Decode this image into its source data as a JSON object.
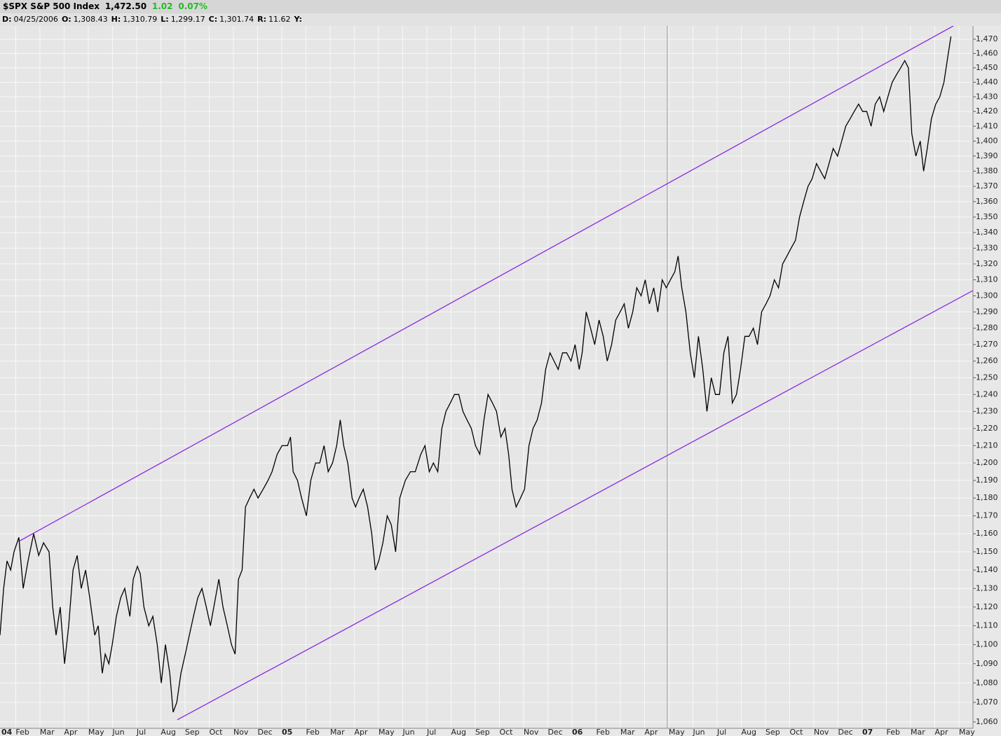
{
  "header": {
    "title": "$SPX S&P 500 Index",
    "last": "1,472.50",
    "change": "1.02",
    "change_pct": "0.07%",
    "fields": [
      {
        "label": "D:",
        "value": "04/25/2006"
      },
      {
        "label": "O:",
        "value": "1,308.43"
      },
      {
        "label": "H:",
        "value": "1,310.79"
      },
      {
        "label": "L:",
        "value": "1,299.17"
      },
      {
        "label": "C:",
        "value": "1,301.74"
      },
      {
        "label": "R:",
        "value": "11.62"
      },
      {
        "label": "Y:"
      }
    ]
  },
  "chart_data": {
    "type": "line",
    "log_scale": true,
    "grid": true,
    "xlim": [
      0.35,
      40.58
    ],
    "ylim": [
      1056.8,
      1479.4
    ],
    "xticks": [
      {
        "value": 0,
        "label": "04"
      },
      {
        "value": 1,
        "label": "Feb"
      },
      {
        "value": 2,
        "label": "Mar"
      },
      {
        "value": 3,
        "label": "Apr"
      },
      {
        "value": 4,
        "label": "May"
      },
      {
        "value": 5,
        "label": "Jun"
      },
      {
        "value": 6,
        "label": "Jul"
      },
      {
        "value": 7,
        "label": "Aug"
      },
      {
        "value": 8,
        "label": "Sep"
      },
      {
        "value": 9,
        "label": "Oct"
      },
      {
        "value": 10,
        "label": "Nov"
      },
      {
        "value": 11,
        "label": "Dec"
      },
      {
        "value": 12,
        "label": "05"
      },
      {
        "value": 13,
        "label": "Feb"
      },
      {
        "value": 14,
        "label": "Mar"
      },
      {
        "value": 15,
        "label": "Apr"
      },
      {
        "value": 16,
        "label": "May"
      },
      {
        "value": 17,
        "label": "Jun"
      },
      {
        "value": 18,
        "label": "Jul"
      },
      {
        "value": 19,
        "label": "Aug"
      },
      {
        "value": 20,
        "label": "Sep"
      },
      {
        "value": 21,
        "label": "Oct"
      },
      {
        "value": 22,
        "label": "Nov"
      },
      {
        "value": 23,
        "label": "Dec"
      },
      {
        "value": 24,
        "label": "06"
      },
      {
        "value": 25,
        "label": "Feb"
      },
      {
        "value": 26,
        "label": "Mar"
      },
      {
        "value": 27,
        "label": "Apr"
      },
      {
        "value": 28,
        "label": "May"
      },
      {
        "value": 29,
        "label": "Jun"
      },
      {
        "value": 30,
        "label": "Jul"
      },
      {
        "value": 31,
        "label": "Aug"
      },
      {
        "value": 32,
        "label": "Sep"
      },
      {
        "value": 33,
        "label": "Oct"
      },
      {
        "value": 34,
        "label": "Nov"
      },
      {
        "value": 35,
        "label": "Dec"
      },
      {
        "value": 36,
        "label": "07"
      },
      {
        "value": 37,
        "label": "Feb"
      },
      {
        "value": 38,
        "label": "Mar"
      },
      {
        "value": 39,
        "label": "Apr"
      },
      {
        "value": 40,
        "label": "May"
      }
    ],
    "yticks": [
      {
        "value": 1060,
        "label": "1,060"
      },
      {
        "value": 1070,
        "label": "1,070"
      },
      {
        "value": 1080,
        "label": "1,080"
      },
      {
        "value": 1090,
        "label": "1,090"
      },
      {
        "value": 1100,
        "label": "1,100"
      },
      {
        "value": 1110,
        "label": "1,110"
      },
      {
        "value": 1120,
        "label": "1,120"
      },
      {
        "value": 1130,
        "label": "1,130"
      },
      {
        "value": 1140,
        "label": "1,140"
      },
      {
        "value": 1150,
        "label": "1,150"
      },
      {
        "value": 1160,
        "label": "1,160"
      },
      {
        "value": 1170,
        "label": "1,170"
      },
      {
        "value": 1180,
        "label": "1,180"
      },
      {
        "value": 1190,
        "label": "1,190"
      },
      {
        "value": 1200,
        "label": "1,200"
      },
      {
        "value": 1210,
        "label": "1,210"
      },
      {
        "value": 1220,
        "label": "1,220"
      },
      {
        "value": 1230,
        "label": "1,230"
      },
      {
        "value": 1240,
        "label": "1,240"
      },
      {
        "value": 1250,
        "label": "1,250"
      },
      {
        "value": 1260,
        "label": "1,260"
      },
      {
        "value": 1270,
        "label": "1,270"
      },
      {
        "value": 1280,
        "label": "1,280"
      },
      {
        "value": 1290,
        "label": "1,290"
      },
      {
        "value": 1300,
        "label": "1,300"
      },
      {
        "value": 1310,
        "label": "1,310"
      },
      {
        "value": 1320,
        "label": "1,320"
      },
      {
        "value": 1330,
        "label": "1,330"
      },
      {
        "value": 1340,
        "label": "1,340"
      },
      {
        "value": 1350,
        "label": "1,350"
      },
      {
        "value": 1360,
        "label": "1,360"
      },
      {
        "value": 1370,
        "label": "1,370"
      },
      {
        "value": 1380,
        "label": "1,380"
      },
      {
        "value": 1390,
        "label": "1,390"
      },
      {
        "value": 1400,
        "label": "1,400"
      },
      {
        "value": 1410,
        "label": "1,410"
      },
      {
        "value": 1420,
        "label": "1,420"
      },
      {
        "value": 1430,
        "label": "1,430"
      },
      {
        "value": 1440,
        "label": "1,440"
      },
      {
        "value": 1450,
        "label": "1,450"
      },
      {
        "value": 1460,
        "label": "1,460"
      },
      {
        "value": 1470,
        "label": "1,470"
      }
    ],
    "x": [
      0.35,
      0.5,
      0.64,
      0.79,
      0.93,
      1.13,
      1.31,
      1.51,
      1.74,
      1.95,
      2.15,
      2.38,
      2.53,
      2.67,
      2.84,
      3.02,
      3.19,
      3.37,
      3.54,
      3.71,
      3.89,
      4.06,
      4.27,
      4.41,
      4.58,
      4.7,
      4.85,
      4.99,
      5.16,
      5.34,
      5.51,
      5.72,
      5.86,
      6.03,
      6.15,
      6.3,
      6.5,
      6.67,
      6.85,
      7.02,
      7.19,
      7.37,
      7.51,
      7.66,
      7.83,
      8.01,
      8.18,
      8.35,
      8.53,
      8.7,
      8.88,
      9.05,
      9.22,
      9.4,
      9.57,
      9.75,
      9.92,
      10.07,
      10.21,
      10.36,
      10.5,
      10.67,
      10.85,
      11.02,
      11.23,
      11.43,
      11.6,
      11.81,
      12.01,
      12.24,
      12.36,
      12.47,
      12.65,
      12.82,
      13.02,
      13.2,
      13.4,
      13.57,
      13.75,
      13.92,
      14.1,
      14.27,
      14.42,
      14.56,
      14.73,
      14.91,
      15.05,
      15.2,
      15.37,
      15.55,
      15.72,
      15.87,
      16.01,
      16.18,
      16.36,
      16.53,
      16.71,
      16.88,
      17.11,
      17.32,
      17.52,
      17.75,
      17.92,
      18.1,
      18.27,
      18.45,
      18.62,
      18.79,
      18.97,
      19.14,
      19.32,
      19.49,
      19.66,
      19.84,
      20.01,
      20.19,
      20.36,
      20.53,
      20.71,
      20.88,
      21.06,
      21.23,
      21.38,
      21.52,
      21.69,
      21.87,
      22.04,
      22.22,
      22.39,
      22.56,
      22.74,
      22.91,
      23.09,
      23.26,
      23.43,
      23.61,
      23.78,
      23.96,
      24.13,
      24.3,
      24.42,
      24.59,
      24.77,
      24.94,
      25.12,
      25.29,
      25.46,
      25.64,
      25.81,
      25.99,
      26.16,
      26.33,
      26.51,
      26.68,
      26.86,
      27.03,
      27.2,
      27.38,
      27.55,
      27.73,
      27.9,
      28.07,
      28.25,
      28.39,
      28.54,
      28.71,
      28.89,
      29.06,
      29.23,
      29.41,
      29.58,
      29.76,
      29.93,
      30.1,
      30.28,
      30.45,
      30.63,
      30.8,
      30.97,
      31.15,
      31.32,
      31.5,
      31.67,
      31.84,
      32.02,
      32.19,
      32.37,
      32.54,
      32.71,
      32.89,
      33.06,
      33.24,
      33.41,
      33.58,
      33.76,
      33.93,
      34.11,
      34.28,
      34.45,
      34.63,
      34.8,
      34.98,
      35.15,
      35.32,
      35.5,
      35.67,
      35.85,
      36.02,
      36.19,
      36.37,
      36.54,
      36.72,
      36.89,
      37.06,
      37.24,
      37.41,
      37.59,
      37.76,
      37.91,
      38.05,
      38.22,
      38.4,
      38.54,
      38.69,
      38.86,
      39.04,
      39.21,
      39.38,
      39.56,
      39.67
    ],
    "series": [
      {
        "color": "#000000",
        "values": [
          1105,
          1130,
          1145,
          1140,
          1150,
          1158,
          1130,
          1145,
          1160,
          1148,
          1155,
          1150,
          1120,
          1105,
          1120,
          1090,
          1110,
          1140,
          1148,
          1130,
          1140,
          1125,
          1105,
          1110,
          1085,
          1095,
          1090,
          1100,
          1115,
          1125,
          1130,
          1115,
          1135,
          1142,
          1138,
          1120,
          1110,
          1115,
          1100,
          1080,
          1100,
          1085,
          1065,
          1070,
          1085,
          1095,
          1105,
          1115,
          1125,
          1130,
          1120,
          1110,
          1122,
          1135,
          1120,
          1110,
          1100,
          1095,
          1135,
          1140,
          1175,
          1180,
          1185,
          1180,
          1185,
          1190,
          1195,
          1205,
          1210,
          1210,
          1215,
          1195,
          1190,
          1180,
          1170,
          1190,
          1200,
          1200,
          1210,
          1195,
          1200,
          1210,
          1225,
          1210,
          1200,
          1180,
          1175,
          1180,
          1185,
          1175,
          1160,
          1140,
          1145,
          1155,
          1170,
          1165,
          1150,
          1180,
          1190,
          1195,
          1195,
          1205,
          1210,
          1195,
          1200,
          1195,
          1220,
          1230,
          1235,
          1240,
          1240,
          1230,
          1225,
          1220,
          1210,
          1205,
          1225,
          1240,
          1235,
          1230,
          1215,
          1220,
          1205,
          1185,
          1175,
          1180,
          1185,
          1210,
          1220,
          1225,
          1235,
          1255,
          1265,
          1260,
          1255,
          1265,
          1265,
          1260,
          1270,
          1255,
          1265,
          1290,
          1280,
          1270,
          1285,
          1275,
          1260,
          1270,
          1285,
          1290,
          1295,
          1280,
          1290,
          1305,
          1300,
          1310,
          1295,
          1305,
          1290,
          1310,
          1305,
          1310,
          1315,
          1325,
          1305,
          1290,
          1265,
          1250,
          1275,
          1255,
          1230,
          1250,
          1240,
          1240,
          1265,
          1275,
          1235,
          1240,
          1255,
          1275,
          1275,
          1280,
          1270,
          1290,
          1295,
          1300,
          1310,
          1305,
          1320,
          1325,
          1330,
          1335,
          1350,
          1360,
          1370,
          1375,
          1385,
          1380,
          1375,
          1385,
          1395,
          1390,
          1400,
          1410,
          1415,
          1420,
          1425,
          1420,
          1420,
          1410,
          1425,
          1430,
          1420,
          1430,
          1440,
          1445,
          1450,
          1455,
          1450,
          1405,
          1390,
          1400,
          1380,
          1395,
          1415,
          1425,
          1430,
          1440,
          1460,
          1472
        ]
      }
    ],
    "trendlines": [
      {
        "color": "#8a2be2",
        "x": [
          1.13,
          39.77
        ],
        "values": [
          1155.8,
          1479.4
        ]
      },
      {
        "color": "#8a2be2",
        "x": [
          7.68,
          40.58
        ],
        "values": [
          1061.1,
          1303.3
        ]
      }
    ],
    "cursor_x": 27.94
  }
}
